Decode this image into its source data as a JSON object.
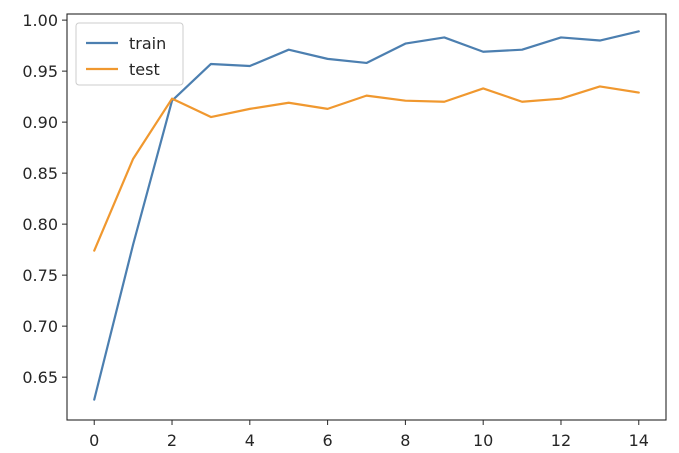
{
  "chart_data": {
    "type": "line",
    "x": [
      0,
      1,
      2,
      3,
      4,
      5,
      6,
      7,
      8,
      9,
      10,
      11,
      12,
      13,
      14
    ],
    "series": [
      {
        "name": "train",
        "color": "#4c7fb0",
        "values": [
          0.628,
          0.78,
          0.921,
          0.957,
          0.955,
          0.971,
          0.962,
          0.958,
          0.977,
          0.983,
          0.969,
          0.971,
          0.983,
          0.98,
          0.989
        ]
      },
      {
        "name": "test",
        "color": "#f0982f",
        "values": [
          0.774,
          0.864,
          0.923,
          0.905,
          0.913,
          0.919,
          0.913,
          0.926,
          0.921,
          0.92,
          0.933,
          0.92,
          0.923,
          0.935,
          0.929
        ]
      }
    ],
    "xlim": [
      -0.7,
      14.7
    ],
    "ylim": [
      0.608,
      1.006
    ],
    "xticks": [
      0,
      2,
      4,
      6,
      8,
      10,
      12,
      14
    ],
    "yticks": [
      0.65,
      0.7,
      0.75,
      0.8,
      0.85,
      0.9,
      0.95,
      1.0
    ],
    "xtick_labels": [
      "0",
      "2",
      "4",
      "6",
      "8",
      "10",
      "12",
      "14"
    ],
    "ytick_labels": [
      "0.65",
      "0.70",
      "0.75",
      "0.80",
      "0.85",
      "0.90",
      "0.95",
      "1.00"
    ],
    "title": "",
    "xlabel": "",
    "ylabel": "",
    "grid": false,
    "legend": "upper-left"
  }
}
